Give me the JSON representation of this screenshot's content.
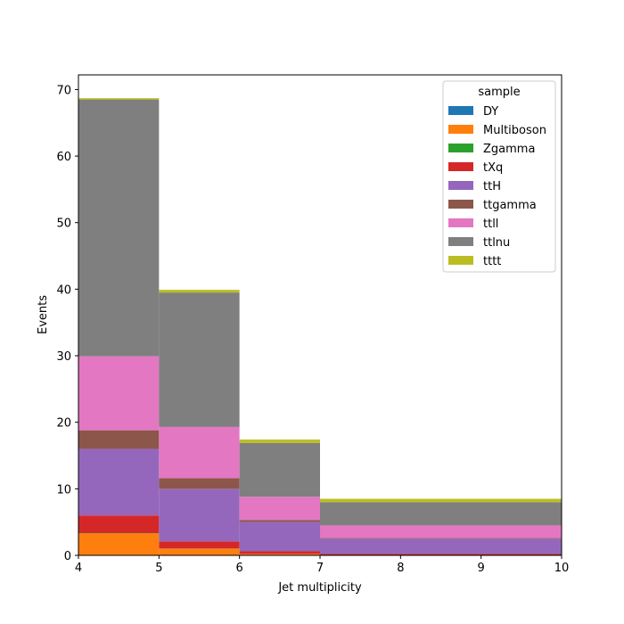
{
  "chart_data": {
    "type": "bar",
    "stacked": true,
    "histogram": true,
    "bin_edges": [
      4,
      5,
      6,
      7,
      10
    ],
    "xlabel": "Jet multiplicity",
    "ylabel": "Events",
    "xlim": [
      4,
      10
    ],
    "ylim": [
      0,
      72.2
    ],
    "xticks": [
      "4",
      "5",
      "6",
      "7",
      "8",
      "9",
      "10"
    ],
    "yticks": [
      "0",
      "10",
      "20",
      "30",
      "40",
      "50",
      "60",
      "70"
    ],
    "grid": false,
    "legend": {
      "title": "sample",
      "placement": "top-right"
    },
    "series": [
      {
        "name": "DY",
        "color": "#1f77b4",
        "values": [
          0.05,
          0.03,
          0.02,
          0.02
        ]
      },
      {
        "name": "Multiboson",
        "color": "#ff7f0e",
        "values": [
          3.25,
          0.97,
          0.18,
          0.03
        ]
      },
      {
        "name": "Zgamma",
        "color": "#2ca02c",
        "values": [
          0.05,
          0.03,
          0.02,
          0.01
        ]
      },
      {
        "name": "tXq",
        "color": "#d62728",
        "values": [
          2.65,
          1.07,
          0.38,
          0.14
        ]
      },
      {
        "name": "ttH",
        "color": "#9467bd",
        "values": [
          10.0,
          7.9,
          4.4,
          2.3
        ]
      },
      {
        "name": "ttgamma",
        "color": "#8c564b",
        "values": [
          2.8,
          1.6,
          0.3,
          0.1
        ]
      },
      {
        "name": "ttll",
        "color": "#e377c2",
        "values": [
          11.1,
          7.7,
          3.5,
          1.9
        ]
      },
      {
        "name": "ttlnu",
        "color": "#7f7f7f",
        "values": [
          38.6,
          20.2,
          8.1,
          3.5
        ]
      },
      {
        "name": "tttt",
        "color": "#bcbd22",
        "values": [
          0.2,
          0.4,
          0.5,
          0.5
        ]
      }
    ]
  }
}
